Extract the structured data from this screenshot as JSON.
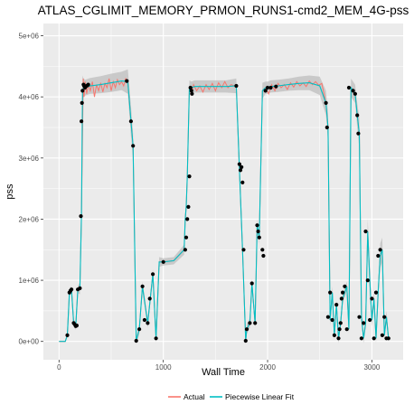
{
  "chart_data": {
    "type": "line",
    "title": "ATLAS_CGLIMIT_MEMORY_PRMON_RUNS1-cmd2_MEM_4G-pss",
    "xlabel": "Wall Time",
    "ylabel": "pss",
    "xlim": [
      -150,
      3300
    ],
    "ylim": [
      -300000,
      5200000
    ],
    "x_ticks": [
      0,
      1000,
      2000,
      3000
    ],
    "x_tick_labels": [
      "0",
      "1000",
      "2000",
      "3000"
    ],
    "y_ticks": [
      0,
      1000000,
      2000000,
      3000000,
      4000000,
      5000000
    ],
    "y_tick_labels": [
      "0e+00",
      "1e+06",
      "2e+06",
      "3e+06",
      "4e+06",
      "5e+06"
    ],
    "grid": true,
    "legend": {
      "position": "bottom",
      "entries": [
        {
          "name": "Actual",
          "color": "#F8766D"
        },
        {
          "name": "Piecewise Linear Fit",
          "color": "#00BFC4"
        }
      ]
    },
    "colors": {
      "panel": "#EBEBEB",
      "grid": "#FFFFFF",
      "actual": "#F8766D",
      "fit": "#00BFC4",
      "band": "#BEBEBE",
      "points": "#000000"
    },
    "series": [
      {
        "name": "Piecewise Linear Fit",
        "x": [
          0,
          60,
          80,
          100,
          120,
          140,
          160,
          180,
          200,
          215,
          225,
          235,
          250,
          300,
          400,
          500,
          600,
          660,
          690,
          710,
          740,
          770,
          800,
          850,
          900,
          930,
          960,
          1000,
          1100,
          1200,
          1210,
          1220,
          1230,
          1250,
          1270,
          1300,
          1600,
          1700,
          1730,
          1760,
          1790,
          1800,
          1830,
          1850,
          1880,
          1900,
          1920,
          1950,
          1980,
          2000,
          2030,
          2100,
          2200,
          2300,
          2400,
          2500,
          2560,
          2580,
          2600,
          2620,
          2640,
          2660,
          2680,
          2700,
          2720,
          2740,
          2760,
          2780,
          2800,
          2820,
          2840,
          2860,
          2880,
          2900,
          2920,
          2940,
          2960,
          2980,
          3000,
          3020,
          3040,
          3060,
          3080,
          3100,
          3120,
          3140,
          3160
        ],
        "y": [
          0,
          0,
          100000,
          800000,
          850000,
          300000,
          250000,
          850000,
          870000,
          2050000,
          4100000,
          4150000,
          4150000,
          4180000,
          4200000,
          4230000,
          4260000,
          4250000,
          3600000,
          3200000,
          10000,
          200000,
          900000,
          300000,
          1100000,
          50000,
          1300000,
          1300000,
          1320000,
          1500000,
          2000000,
          2200000,
          2700000,
          4150000,
          4150000,
          4170000,
          4170000,
          4180000,
          2800000,
          1500000,
          10000,
          200000,
          300000,
          950000,
          300000,
          1900000,
          1700000,
          4100000,
          4150000,
          4150000,
          4170000,
          4180000,
          4200000,
          4220000,
          4230000,
          4180000,
          3900000,
          3500000,
          350000,
          800000,
          100000,
          600000,
          50000,
          300000,
          700000,
          800000,
          900000,
          200000,
          4150000,
          4100000,
          4050000,
          3700000,
          3400000,
          400000,
          50000,
          300000,
          1800000,
          1000000,
          350000,
          700000,
          50000,
          800000,
          1400000,
          1500000,
          100000,
          400000,
          50000
        ],
        "band_halfwidth": [
          0,
          0,
          40000,
          60000,
          60000,
          60000,
          60000,
          60000,
          100000,
          200000,
          250000,
          150000,
          130000,
          130000,
          140000,
          150000,
          150000,
          200000,
          250000,
          200000,
          60000,
          80000,
          80000,
          80000,
          80000,
          80000,
          80000,
          60000,
          60000,
          80000,
          100000,
          120000,
          150000,
          120000,
          100000,
          100000,
          100000,
          120000,
          150000,
          150000,
          60000,
          80000,
          80000,
          80000,
          80000,
          100000,
          100000,
          130000,
          100000,
          100000,
          100000,
          100000,
          100000,
          110000,
          120000,
          150000,
          200000,
          250000,
          100000,
          100000,
          80000,
          80000,
          80000,
          80000,
          80000,
          80000,
          80000,
          80000,
          150000,
          150000,
          150000,
          200000,
          250000,
          100000,
          80000,
          80000,
          200000,
          200000,
          100000,
          100000,
          80000,
          100000,
          200000,
          200000,
          80000,
          100000,
          60000
        ]
      },
      {
        "name": "Actual",
        "x": [
          0,
          60,
          80,
          100,
          120,
          140,
          160,
          180,
          200,
          215,
          225,
          232,
          240,
          250,
          265,
          280,
          300,
          320,
          340,
          360,
          380,
          400,
          420,
          440,
          460,
          480,
          500,
          520,
          540,
          560,
          580,
          600,
          620,
          640,
          660,
          690,
          710,
          740,
          770,
          800,
          850,
          900,
          930,
          960,
          1000,
          1100,
          1200,
          1210,
          1220,
          1230,
          1250,
          1270,
          1290,
          1320,
          1350,
          1380,
          1410,
          1440,
          1470,
          1500,
          1530,
          1560,
          1590,
          1620,
          1650,
          1680,
          1700,
          1730,
          1760,
          1790,
          1800,
          1830,
          1850,
          1880,
          1900,
          1920,
          1950,
          1980,
          2010,
          2040,
          2070,
          2100,
          2130,
          2160,
          2190,
          2220,
          2250,
          2280,
          2310,
          2340,
          2370,
          2400,
          2430,
          2460,
          2490,
          2520,
          2560,
          2580,
          2600,
          2620,
          2640,
          2660,
          2680,
          2700,
          2720,
          2740,
          2760,
          2780,
          2800,
          2820,
          2840,
          2860,
          2880,
          2900,
          2920,
          2940,
          2960,
          2980,
          3000,
          3020,
          3040,
          3060,
          3080,
          3100,
          3120,
          3140,
          3160
        ],
        "y": [
          0,
          0,
          100000,
          800000,
          850000,
          300000,
          250000,
          850000,
          870000,
          2050000,
          3400000,
          4300000,
          4000000,
          4250000,
          4050000,
          4200000,
          4100000,
          4250000,
          4000000,
          4200000,
          4100000,
          4230000,
          4080000,
          4220000,
          4150000,
          4300000,
          4100000,
          4250000,
          4150000,
          4280000,
          4200000,
          4250000,
          4180000,
          4300000,
          4250000,
          3600000,
          3200000,
          10000,
          200000,
          900000,
          300000,
          1100000,
          50000,
          1300000,
          1300000,
          1320000,
          1500000,
          2000000,
          2200000,
          2700000,
          4150000,
          4050000,
          4200000,
          4100000,
          4180000,
          4080000,
          4200000,
          4120000,
          4220000,
          4100000,
          4230000,
          4150000,
          4250000,
          4150000,
          4200000,
          4180000,
          4180000,
          2800000,
          1500000,
          10000,
          200000,
          300000,
          950000,
          300000,
          1900000,
          1700000,
          4100000,
          4150000,
          4050000,
          4200000,
          4100000,
          4220000,
          4150000,
          4200000,
          4120000,
          4230000,
          4160000,
          4250000,
          4180000,
          4230000,
          4170000,
          4260000,
          4200000,
          4250000,
          4190000,
          4220000,
          3900000,
          3500000,
          350000,
          800000,
          100000,
          600000,
          50000,
          300000,
          700000,
          800000,
          900000,
          200000,
          4150000,
          4100000,
          4050000,
          3700000,
          3400000,
          400000,
          50000,
          300000,
          1800000,
          1000000,
          350000,
          700000,
          50000,
          800000,
          1400000,
          1500000,
          100000,
          400000,
          50000
        ]
      },
      {
        "name": "Points",
        "x": [
          80,
          100,
          110,
          120,
          140,
          150,
          160,
          170,
          180,
          200,
          210,
          215,
          220,
          225,
          235,
          240,
          250,
          265,
          280,
          650,
          690,
          710,
          740,
          770,
          800,
          820,
          850,
          870,
          900,
          930,
          1000,
          1210,
          1220,
          1230,
          1240,
          1250,
          1260,
          1270,
          1275,
          1700,
          1730,
          1740,
          1750,
          1760,
          1770,
          1790,
          1800,
          1830,
          1850,
          1880,
          1900,
          1910,
          1920,
          1950,
          1960,
          1980,
          2000,
          2030,
          2080,
          2560,
          2570,
          2580,
          2600,
          2620,
          2640,
          2660,
          2680,
          2690,
          2700,
          2710,
          2720,
          2740,
          2760,
          2780,
          2820,
          2840,
          2860,
          2870,
          2880,
          2900,
          2920,
          2940,
          2960,
          2980,
          3000,
          3020,
          3040,
          3060,
          3080,
          3100,
          3120,
          3140,
          3160
        ],
        "y": [
          100000,
          800000,
          830000,
          850000,
          300000,
          280000,
          250000,
          260000,
          850000,
          870000,
          2050000,
          3600000,
          3900000,
          4100000,
          4200000,
          4180000,
          4150000,
          4180000,
          4200000,
          4260000,
          3600000,
          3200000,
          10000,
          200000,
          900000,
          350000,
          300000,
          700000,
          1100000,
          50000,
          1300000,
          1500000,
          1700000,
          2000000,
          2200000,
          2700000,
          4150000,
          4100000,
          4050000,
          4180000,
          2900000,
          2800000,
          2850000,
          2600000,
          1500000,
          10000,
          200000,
          300000,
          950000,
          300000,
          1900000,
          1800000,
          1700000,
          1500000,
          1400000,
          4100000,
          4150000,
          4150000,
          4170000,
          3900000,
          3500000,
          400000,
          800000,
          350000,
          100000,
          600000,
          50000,
          200000,
          300000,
          700000,
          800000,
          900000,
          200000,
          4150000,
          4100000,
          4050000,
          3700000,
          3400000,
          400000,
          50000,
          300000,
          1800000,
          1000000,
          350000,
          700000,
          50000,
          800000,
          1400000,
          1500000,
          100000,
          400000,
          50000,
          50000
        ]
      }
    ]
  }
}
